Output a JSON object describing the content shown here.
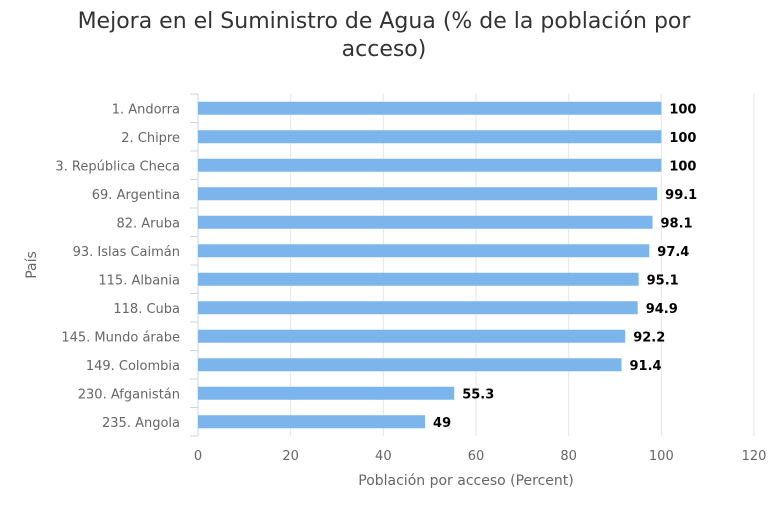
{
  "chart_data": {
    "type": "bar",
    "orientation": "horizontal",
    "title": "Mejora en el Suministro de Agua (% de la población por acceso)",
    "xlabel": "Población por acceso (Percent)",
    "ylabel": "País",
    "xlim": [
      0,
      120
    ],
    "xticks": [
      "0",
      "20",
      "40",
      "60",
      "80",
      "100",
      "120"
    ],
    "grid": true,
    "categories": [
      "1. Andorra",
      "2. Chipre",
      "3. República Checa",
      "69. Argentina",
      "82. Aruba",
      "93. Islas Caimán",
      "115. Albania",
      "118. Cuba",
      "145. Mundo árabe",
      "149. Colombia",
      "230. Afganistán",
      "235. Angola"
    ],
    "values": [
      100,
      100,
      100,
      99.1,
      98.1,
      97.4,
      95.1,
      94.9,
      92.2,
      91.4,
      55.3,
      49
    ],
    "value_labels": [
      "100",
      "100",
      "100",
      "99.1",
      "98.1",
      "97.4",
      "95.1",
      "94.9",
      "92.2",
      "91.4",
      "55.3",
      "49"
    ],
    "bar_color": "#7cb5ec",
    "grid_color": "#e6e6e6"
  }
}
